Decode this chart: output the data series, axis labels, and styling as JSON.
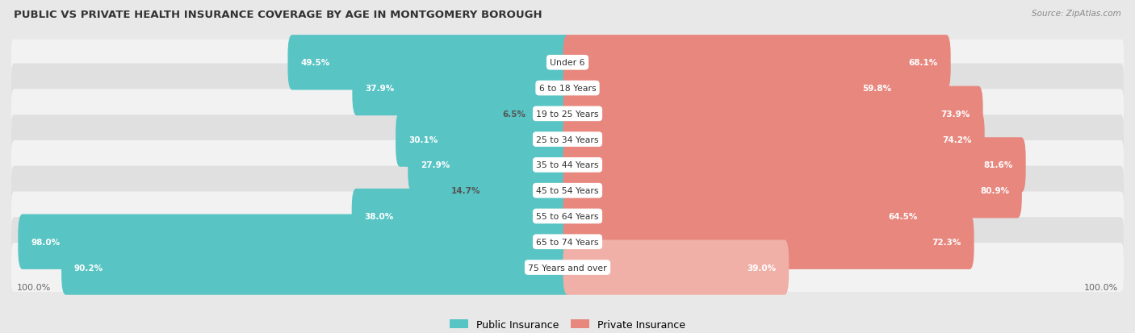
{
  "title": "PUBLIC VS PRIVATE HEALTH INSURANCE COVERAGE BY AGE IN MONTGOMERY BOROUGH",
  "source": "Source: ZipAtlas.com",
  "categories": [
    "Under 6",
    "6 to 18 Years",
    "19 to 25 Years",
    "25 to 34 Years",
    "35 to 44 Years",
    "45 to 54 Years",
    "55 to 64 Years",
    "65 to 74 Years",
    "75 Years and over"
  ],
  "public_values": [
    49.5,
    37.9,
    6.5,
    30.1,
    27.9,
    14.7,
    38.0,
    98.0,
    90.2
  ],
  "private_values": [
    68.1,
    59.8,
    73.9,
    74.2,
    81.6,
    80.9,
    64.5,
    72.3,
    39.0
  ],
  "public_color": "#58c4c4",
  "private_color": "#e8877e",
  "private_color_light": "#f0b0a8",
  "bg_color": "#e8e8e8",
  "row_bg_light": "#f2f2f2",
  "row_bg_dark": "#e0e0e0",
  "label_bg": "#ffffff",
  "x_min": -100,
  "x_max": 100,
  "axis_label_left": "100.0%",
  "axis_label_right": "100.0%",
  "legend_public": "Public Insurance",
  "legend_private": "Private Insurance"
}
